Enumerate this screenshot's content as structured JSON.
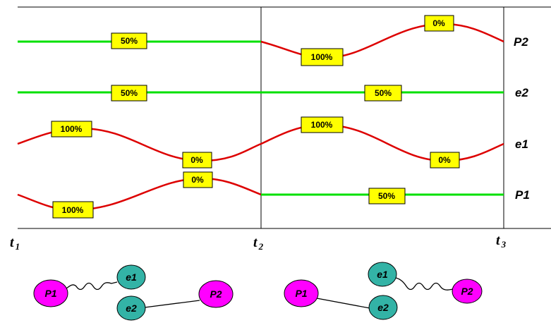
{
  "row_labels": {
    "P2": "P2",
    "e2": "e2",
    "e1": "e1",
    "P1": "P1"
  },
  "time_labels": [
    {
      "main": "t",
      "sub": "1"
    },
    {
      "main": "t",
      "sub": "2"
    },
    {
      "main": "t",
      "sub": "3"
    }
  ],
  "percent_labels": {
    "p2_a": "50%",
    "p2_b": "100%",
    "p2_c": "0%",
    "e2_a": "50%",
    "e2_b": "50%",
    "e1_a": "100%",
    "e1_b": "0%",
    "e1_c": "100%",
    "e1_d": "0%",
    "p1_a": "100%",
    "p1_b": "0%",
    "p1_c": "50%"
  },
  "nodes": {
    "left": {
      "P1": "P1",
      "e1": "e1",
      "e2": "e2",
      "P2": "P2"
    },
    "right": {
      "P1": "P1",
      "e1": "e1",
      "e2": "e2",
      "P2": "P2"
    }
  },
  "colors": {
    "green_line": "#00e000",
    "red_line": "#e00000",
    "label_fill": "#ffff00",
    "p_node": "#ff00ff",
    "e_node": "#33b3a6"
  }
}
